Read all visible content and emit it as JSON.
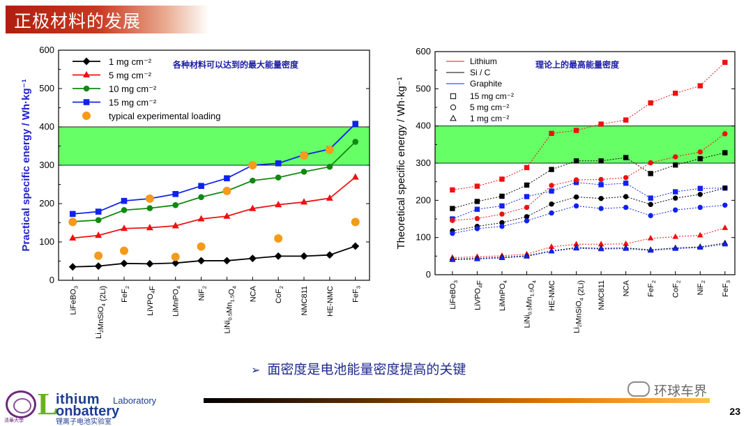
{
  "slide": {
    "title": "正极材料的发展",
    "note": "面密度是电池能量密度提高的关键",
    "note_arrow": "➢",
    "page_number": "23",
    "wechat": "环球车界",
    "logo": {
      "L": "L",
      "ithium": "ithium",
      "laboratory": "Laboratory",
      "onbattery": "onbattery",
      "cn": "锂离子电池实验室",
      "seal_text": "清華大學"
    }
  },
  "chart_data": [
    {
      "type": "line",
      "annotation": "各种材料可以达到的最大能量密度",
      "ylabel": "Practical specific energy / Wh·kg⁻¹",
      "ylim": [
        0,
        600
      ],
      "yticks": [
        0,
        100,
        200,
        300,
        400,
        500,
        600
      ],
      "highlight_band": [
        300,
        400
      ],
      "highlight_color": "#66ff66",
      "legend_position": "top-left",
      "categories": [
        "LiFeBO3",
        "Li2MnSiO4 (2Li)",
        "FeF2",
        "LiVPO4F",
        "LiMnPO4",
        "NiF2",
        "LiNi0.5Mn1.5O4",
        "NCA",
        "CoF2",
        "NMC811",
        "HE-NMC",
        "FeF3"
      ],
      "category_labels": [
        {
          "main": "LiFeBO",
          "sub": "3",
          "rest": ""
        },
        {
          "main": "Li",
          "sub": "2",
          "rest": "MnSiO",
          "sub2": "4",
          "rest2": " (2Li)"
        },
        {
          "main": "FeF",
          "sub": "2",
          "rest": ""
        },
        {
          "main": "LiVPO",
          "sub": "4",
          "rest": "F"
        },
        {
          "main": "LiMnPO",
          "sub": "4",
          "rest": ""
        },
        {
          "main": "NiF",
          "sub": "2",
          "rest": ""
        },
        {
          "main": "LiNi",
          "sub": "0.5",
          "rest": "Mn",
          "sub2": "1.5",
          "rest2": "O",
          "sub3": "4"
        },
        {
          "main": "NCA",
          "sub": "",
          "rest": ""
        },
        {
          "main": "CoF",
          "sub": "2",
          "rest": ""
        },
        {
          "main": "NMC811",
          "sub": "",
          "rest": ""
        },
        {
          "main": "HE-NMC",
          "sub": "",
          "rest": ""
        },
        {
          "main": "FeF",
          "sub": "3",
          "rest": ""
        }
      ],
      "series": [
        {
          "name": "1 mg cm⁻²",
          "color": "#000000",
          "marker": "diamond",
          "values": [
            35,
            37,
            44,
            43,
            45,
            51,
            51,
            57,
            63,
            63,
            66,
            89
          ]
        },
        {
          "name": "5 mg cm⁻²",
          "color": "#ee1111",
          "marker": "triangle",
          "values": [
            110,
            117,
            135,
            137,
            142,
            160,
            167,
            187,
            197,
            204,
            214,
            269
          ]
        },
        {
          "name": "10 mg cm⁻²",
          "color": "#118811",
          "marker": "circle",
          "values": [
            153,
            157,
            183,
            188,
            196,
            217,
            233,
            260,
            268,
            283,
            296,
            361
          ]
        },
        {
          "name": "15 mg cm⁻²",
          "color": "#1122ee",
          "marker": "square",
          "values": [
            173,
            179,
            207,
            213,
            225,
            246,
            266,
            300,
            305,
            327,
            342,
            408
          ]
        }
      ],
      "experimental": {
        "name": "typical experimental loading",
        "color": "#f59a1b",
        "values": [
          152,
          64,
          77,
          213,
          61,
          88,
          233,
          300,
          109,
          325,
          340,
          152
        ]
      }
    },
    {
      "type": "line",
      "annotation": "理论上的最高能量密度",
      "ylabel": "Theoretical specific energy / Wh·kg⁻¹",
      "ylim": [
        0,
        600
      ],
      "yticks": [
        0,
        100,
        200,
        300,
        400,
        500,
        600
      ],
      "highlight_band": [
        300,
        400
      ],
      "highlight_color": "#66ff66",
      "legend_position": "top-left",
      "categories": [
        "LiFeBO3",
        "LiVPO4F",
        "LiMnPO4",
        "LiNi0.5Mn1.5O4",
        "HE-NMC",
        "Li2MnSiO4 (2Li)",
        "NMC811",
        "NCA",
        "FeF2",
        "CoF2",
        "NiF2",
        "FeF3"
      ],
      "category_labels": [
        {
          "main": "LiFeBO",
          "sub": "3",
          "rest": ""
        },
        {
          "main": "LiVPO",
          "sub": "4",
          "rest": "F"
        },
        {
          "main": "LiMnPO",
          "sub": "4",
          "rest": ""
        },
        {
          "main": "LiNi",
          "sub": "0.5",
          "rest": "Mn",
          "sub2": "1.5",
          "rest2": "O",
          "sub3": "4"
        },
        {
          "main": "HE-NMC",
          "sub": "",
          "rest": ""
        },
        {
          "main": "Li",
          "sub": "2",
          "rest": "MnSiO",
          "sub2": "4",
          "rest2": " (2Li)"
        },
        {
          "main": "NMC811",
          "sub": "",
          "rest": ""
        },
        {
          "main": "NCA",
          "sub": "",
          "rest": ""
        },
        {
          "main": "FeF",
          "sub": "2",
          "rest": ""
        },
        {
          "main": "CoF",
          "sub": "2",
          "rest": ""
        },
        {
          "main": "NiF",
          "sub": "2",
          "rest": ""
        },
        {
          "main": "FeF",
          "sub": "3",
          "rest": ""
        }
      ],
      "anode_legend": [
        {
          "name": "Lithium",
          "color": "#ee1111"
        },
        {
          "name": "Si / C",
          "color": "#000000"
        },
        {
          "name": "Graphite",
          "color": "#1122ee"
        }
      ],
      "loading_legend": [
        {
          "name": "15 mg cm⁻²",
          "marker": "square"
        },
        {
          "name": "5 mg cm⁻²",
          "marker": "circle"
        },
        {
          "name": "1 mg cm⁻²",
          "marker": "triangle"
        }
      ],
      "series": [
        {
          "anode": "Lithium",
          "loading": "15",
          "color": "#ee1111",
          "marker": "square",
          "values": [
            228,
            238,
            257,
            288,
            380,
            388,
            405,
            416,
            462,
            488,
            508,
            571
          ]
        },
        {
          "anode": "Si / C",
          "loading": "15",
          "color": "#000000",
          "marker": "square",
          "values": [
            178,
            197,
            211,
            241,
            283,
            306,
            306,
            315,
            272,
            295,
            312,
            328
          ]
        },
        {
          "anode": "Graphite",
          "loading": "15",
          "color": "#1122ee",
          "marker": "square",
          "values": [
            150,
            176,
            185,
            210,
            225,
            248,
            242,
            246,
            206,
            223,
            232,
            233
          ]
        },
        {
          "anode": "Lithium",
          "loading": "5",
          "color": "#ee1111",
          "marker": "circle",
          "values": [
            146,
            151,
            163,
            181,
            240,
            255,
            256,
            261,
            301,
            317,
            330,
            379
          ]
        },
        {
          "anode": "Si / C",
          "loading": "5",
          "color": "#000000",
          "marker": "circle",
          "values": [
            118,
            130,
            140,
            156,
            190,
            209,
            205,
            210,
            189,
            206,
            216,
            233
          ]
        },
        {
          "anode": "Graphite",
          "loading": "5",
          "color": "#1122ee",
          "marker": "circle",
          "values": [
            111,
            124,
            130,
            145,
            166,
            185,
            178,
            181,
            159,
            174,
            181,
            187
          ]
        },
        {
          "anode": "Lithium",
          "loading": "1",
          "color": "#ee1111",
          "marker": "triangle",
          "values": [
            46,
            48,
            51,
            55,
            75,
            82,
            82,
            83,
            98,
            102,
            106,
            126
          ]
        },
        {
          "anode": "Si / C",
          "loading": "1",
          "color": "#000000",
          "marker": "triangle",
          "values": [
            42,
            44,
            47,
            51,
            64,
            73,
            71,
            72,
            67,
            72,
            75,
            85
          ]
        },
        {
          "anode": "Graphite",
          "loading": "1",
          "color": "#1122ee",
          "marker": "triangle",
          "values": [
            40,
            42,
            45,
            49,
            63,
            71,
            69,
            70,
            65,
            70,
            73,
            82
          ]
        }
      ]
    }
  ]
}
